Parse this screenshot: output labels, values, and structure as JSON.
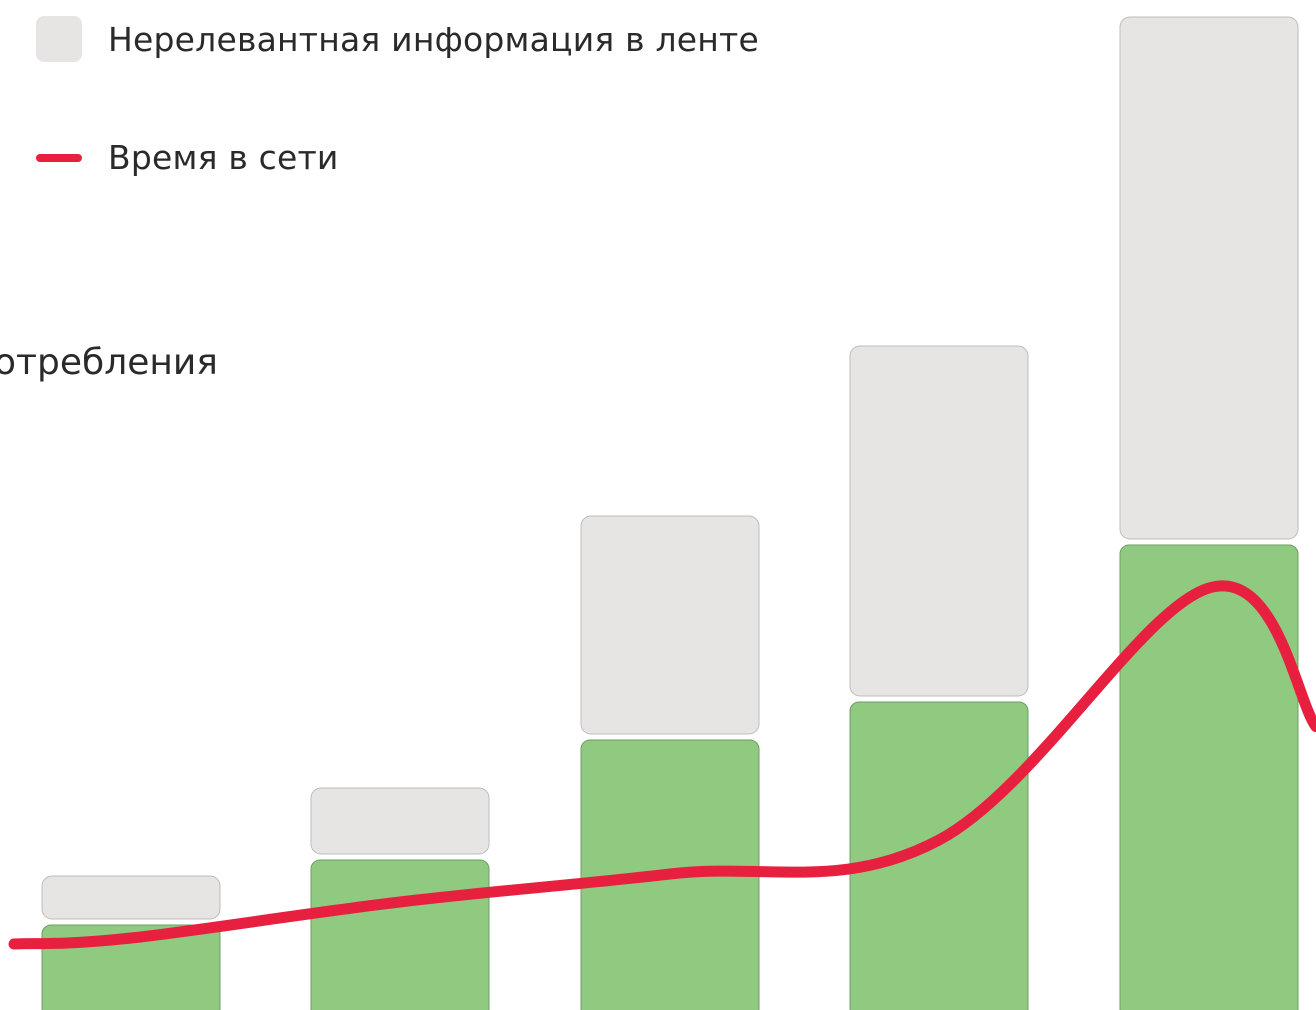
{
  "legend": {
    "items": [
      {
        "label": "Нерелевантная информация в ленте",
        "color": "#e6e5e4",
        "kind": "box"
      },
      {
        "label": "Время в сети",
        "color": "#e8203f",
        "kind": "line"
      }
    ]
  },
  "caption": "отребления",
  "chart_data": {
    "type": "bar",
    "stacked": true,
    "categories": [
      "",
      "",
      "",
      "",
      ""
    ],
    "series": [
      {
        "values": [
          85,
          150,
          270,
          308,
          465
        ],
        "color": "#8fca80"
      },
      {
        "name": "Нерелевантная информация в ленте",
        "values": [
          43,
          66,
          218,
          350,
          522
        ],
        "color": "#e6e5e4"
      }
    ],
    "line": {
      "name": "Время в сети",
      "color": "#e8203f",
      "values": [
        72,
        108,
        136,
        170,
        422
      ]
    },
    "ylim": [
      0,
      1000
    ],
    "grid": false,
    "legend_position": "top-left"
  }
}
